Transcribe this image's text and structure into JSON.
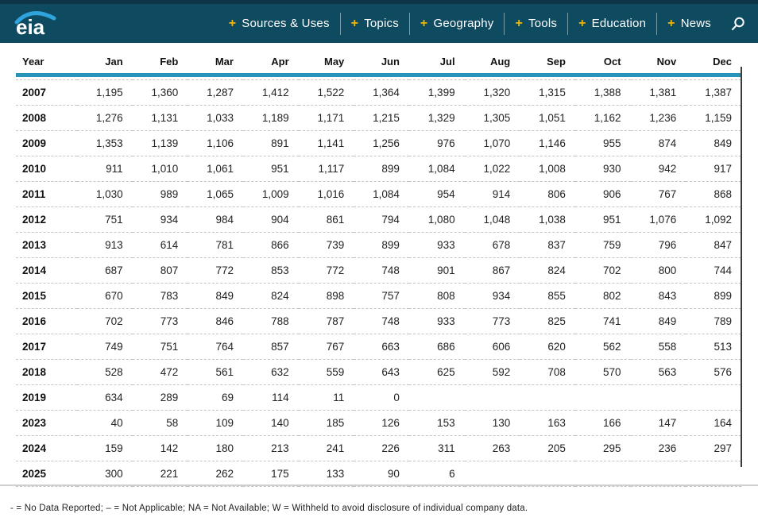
{
  "header": {
    "logo_text": "eia",
    "nav_items": [
      "Sources & Uses",
      "Topics",
      "Geography",
      "Tools",
      "Education",
      "News"
    ],
    "colors": {
      "bar": "#0f4b60",
      "top_strip": "#0d3447",
      "plus": "#f2b705",
      "swoosh": "#2fa3dc",
      "text": "#ffffff"
    }
  },
  "table": {
    "accent_underline_color": "#2a93ba",
    "columns": [
      "Year",
      "Jan",
      "Feb",
      "Mar",
      "Apr",
      "May",
      "Jun",
      "Jul",
      "Aug",
      "Sep",
      "Oct",
      "Nov",
      "Dec"
    ],
    "rows": [
      {
        "year": "2007",
        "values": [
          "1,195",
          "1,360",
          "1,287",
          "1,412",
          "1,522",
          "1,364",
          "1,399",
          "1,320",
          "1,315",
          "1,388",
          "1,381",
          "1,387"
        ]
      },
      {
        "year": "2008",
        "values": [
          "1,276",
          "1,131",
          "1,033",
          "1,189",
          "1,171",
          "1,215",
          "1,329",
          "1,305",
          "1,051",
          "1,162",
          "1,236",
          "1,159"
        ]
      },
      {
        "year": "2009",
        "values": [
          "1,353",
          "1,139",
          "1,106",
          "891",
          "1,141",
          "1,256",
          "976",
          "1,070",
          "1,146",
          "955",
          "874",
          "849"
        ]
      },
      {
        "year": "2010",
        "values": [
          "911",
          "1,010",
          "1,061",
          "951",
          "1,117",
          "899",
          "1,084",
          "1,022",
          "1,008",
          "930",
          "942",
          "917"
        ]
      },
      {
        "year": "2011",
        "values": [
          "1,030",
          "989",
          "1,065",
          "1,009",
          "1,016",
          "1,084",
          "954",
          "914",
          "806",
          "906",
          "767",
          "868"
        ]
      },
      {
        "year": "2012",
        "values": [
          "751",
          "934",
          "984",
          "904",
          "861",
          "794",
          "1,080",
          "1,048",
          "1,038",
          "951",
          "1,076",
          "1,092"
        ]
      },
      {
        "year": "2013",
        "values": [
          "913",
          "614",
          "781",
          "866",
          "739",
          "899",
          "933",
          "678",
          "837",
          "759",
          "796",
          "847"
        ]
      },
      {
        "year": "2014",
        "values": [
          "687",
          "807",
          "772",
          "853",
          "772",
          "748",
          "901",
          "867",
          "824",
          "702",
          "800",
          "744"
        ]
      },
      {
        "year": "2015",
        "values": [
          "670",
          "783",
          "849",
          "824",
          "898",
          "757",
          "808",
          "934",
          "855",
          "802",
          "843",
          "899"
        ]
      },
      {
        "year": "2016",
        "values": [
          "702",
          "773",
          "846",
          "788",
          "787",
          "748",
          "933",
          "773",
          "825",
          "741",
          "849",
          "789"
        ]
      },
      {
        "year": "2017",
        "values": [
          "749",
          "751",
          "764",
          "857",
          "767",
          "663",
          "686",
          "606",
          "620",
          "562",
          "558",
          "513"
        ]
      },
      {
        "year": "2018",
        "values": [
          "528",
          "472",
          "561",
          "632",
          "559",
          "643",
          "625",
          "592",
          "708",
          "570",
          "563",
          "576"
        ]
      },
      {
        "year": "2019",
        "values": [
          "634",
          "289",
          "69",
          "114",
          "11",
          "0",
          "",
          "",
          "",
          "",
          "",
          ""
        ]
      },
      {
        "year": "2023",
        "values": [
          "40",
          "58",
          "109",
          "140",
          "185",
          "126",
          "153",
          "130",
          "163",
          "166",
          "147",
          "164"
        ]
      },
      {
        "year": "2024",
        "values": [
          "159",
          "142",
          "180",
          "213",
          "241",
          "226",
          "311",
          "263",
          "205",
          "295",
          "236",
          "297"
        ]
      },
      {
        "year": "2025",
        "values": [
          "300",
          "221",
          "262",
          "175",
          "133",
          "90",
          "6",
          "",
          "",
          "",
          "",
          ""
        ]
      }
    ]
  },
  "footnote": "- = No Data Reported;  – = Not Applicable;  NA = Not Available;  W = Withheld to avoid disclosure of individual company data."
}
